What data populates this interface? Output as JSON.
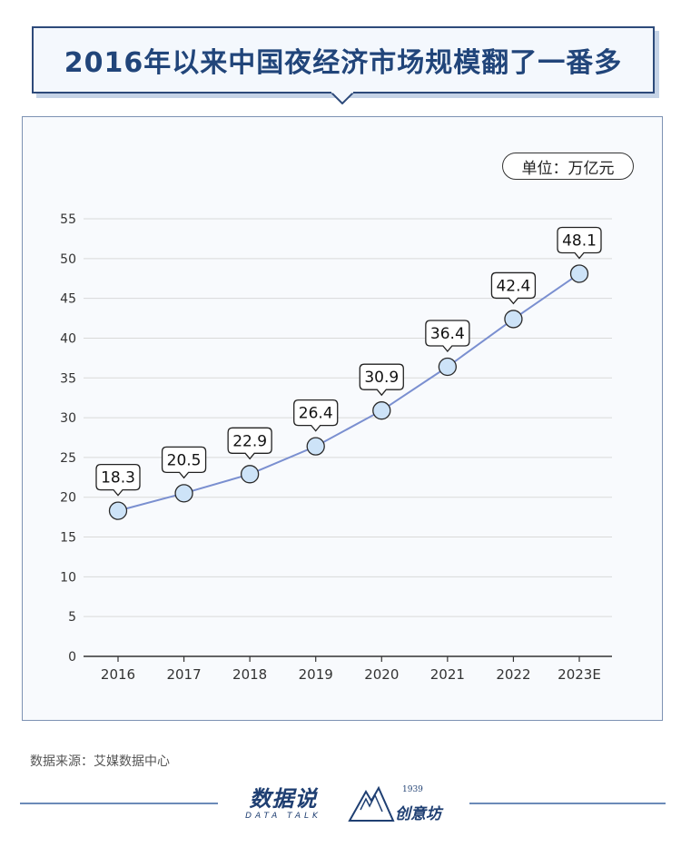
{
  "header": {
    "title": "2016年以来中国夜经济市场规模翻了一番多"
  },
  "chart_data": {
    "type": "line",
    "title": "2016年以来中国夜经济市场规模翻了一番多",
    "unit_label": "单位：万亿元",
    "categories": [
      "2016",
      "2017",
      "2018",
      "2019",
      "2020",
      "2021",
      "2022",
      "2023E"
    ],
    "series": [
      {
        "values": [
          18.3,
          20.5,
          22.9,
          26.4,
          30.9,
          36.4,
          42.4,
          48.1
        ]
      }
    ],
    "data_labels": [
      "18.3",
      "20.5",
      "22.9",
      "26.4",
      "30.9",
      "36.4",
      "42.4",
      "48.1"
    ],
    "ylim": [
      0,
      55
    ],
    "yticks": [
      0,
      5,
      10,
      15,
      20,
      25,
      30,
      35,
      40,
      45,
      50,
      55
    ],
    "grid": true,
    "colors": {
      "line": "#7a8fd0",
      "marker_fill": "#cde3f8",
      "marker_stroke": "#2a2a2a",
      "grid": "#d9d9d9",
      "axis": "#333333"
    }
  },
  "footer": {
    "source": "数据来源：艾媒数据中心",
    "logo_main": "数据说",
    "logo_sub": "DATA TALK",
    "logo_mark": "创意坊",
    "logo_mark_num": "1939"
  }
}
